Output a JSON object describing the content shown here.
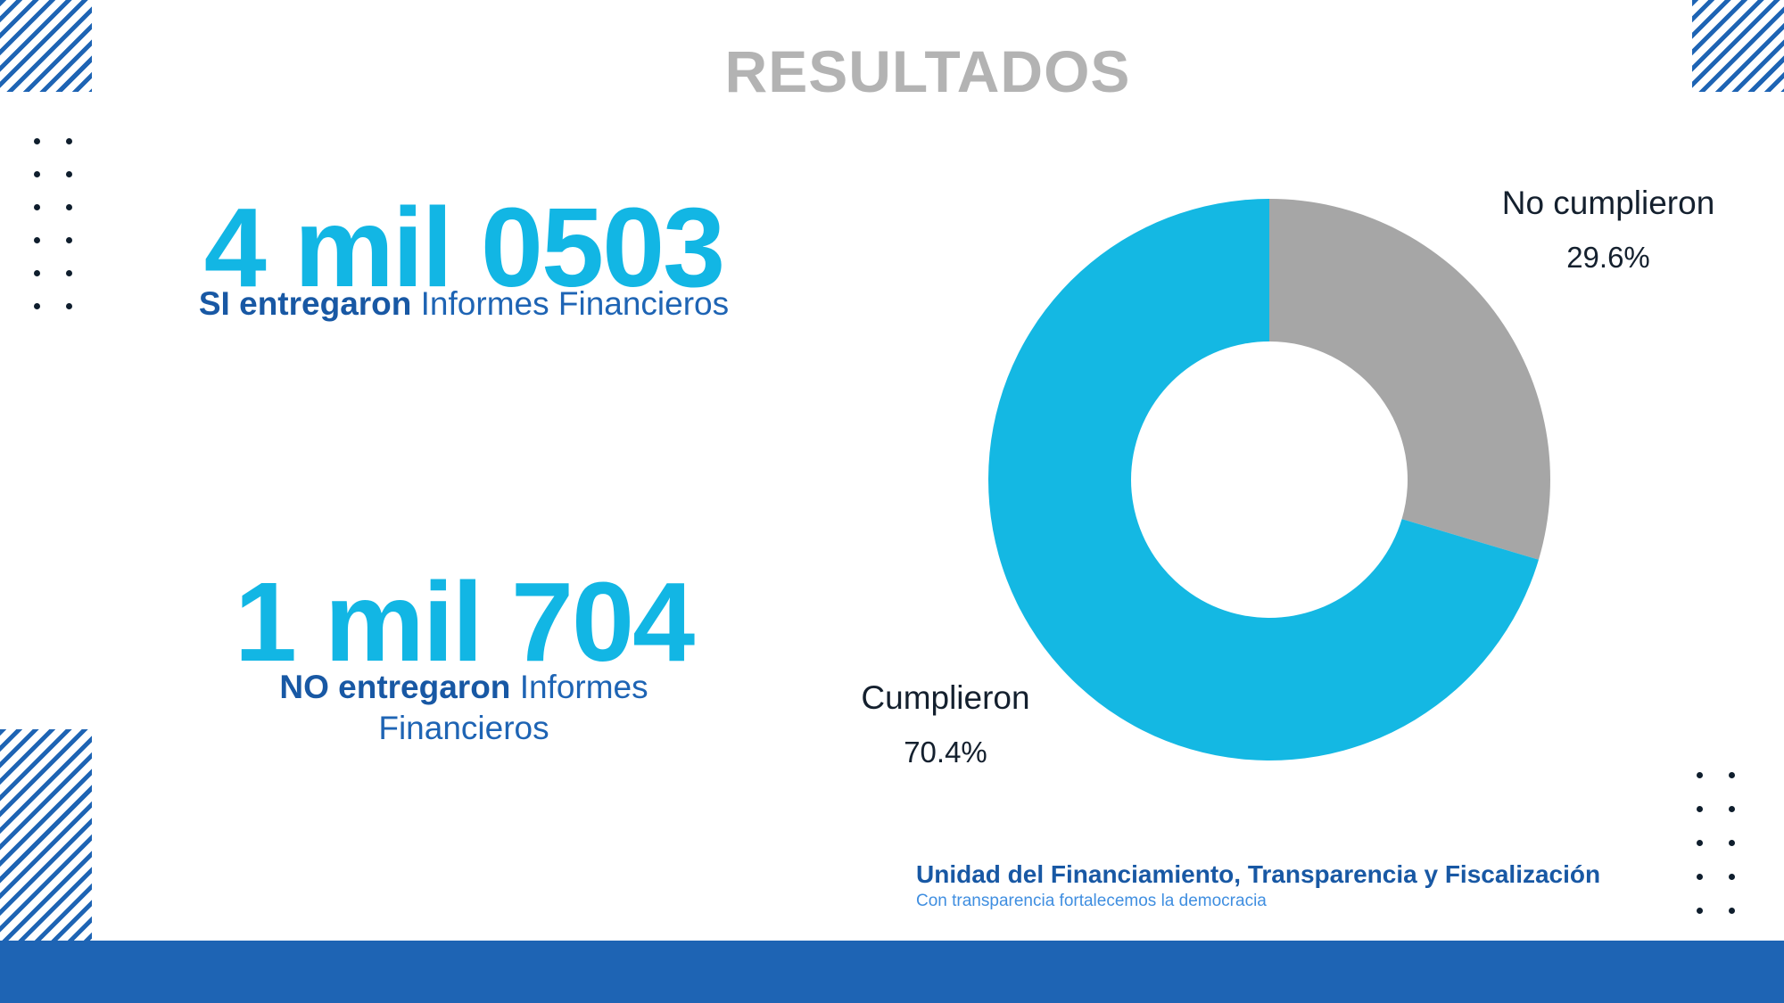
{
  "title": "RESULTADOS",
  "stats": [
    {
      "number": "4 mil 0503",
      "bold": "SI entregaron",
      "rest": "Informes Financieros"
    },
    {
      "number": "1 mil 704",
      "bold": "NO entregaron",
      "rest": "Informes Financieros"
    }
  ],
  "chart_data": {
    "type": "pie",
    "variant": "donut",
    "categories": [
      "No cumplieron",
      "Cumplieron"
    ],
    "values": [
      29.6,
      70.4
    ],
    "value_labels": [
      "29.6%",
      "70.4%"
    ],
    "colors": [
      "#a6a6a6",
      "#14b8e3"
    ]
  },
  "footer": {
    "title": "Unidad del Financiamiento, Transparencia y Fiscalización",
    "subtitle": "Con transparencia fortalecemos la democracia"
  },
  "colors": {
    "accent": "#12b6e4",
    "brand_blue": "#1e64b4",
    "title_gray": "#b3b3b3"
  }
}
